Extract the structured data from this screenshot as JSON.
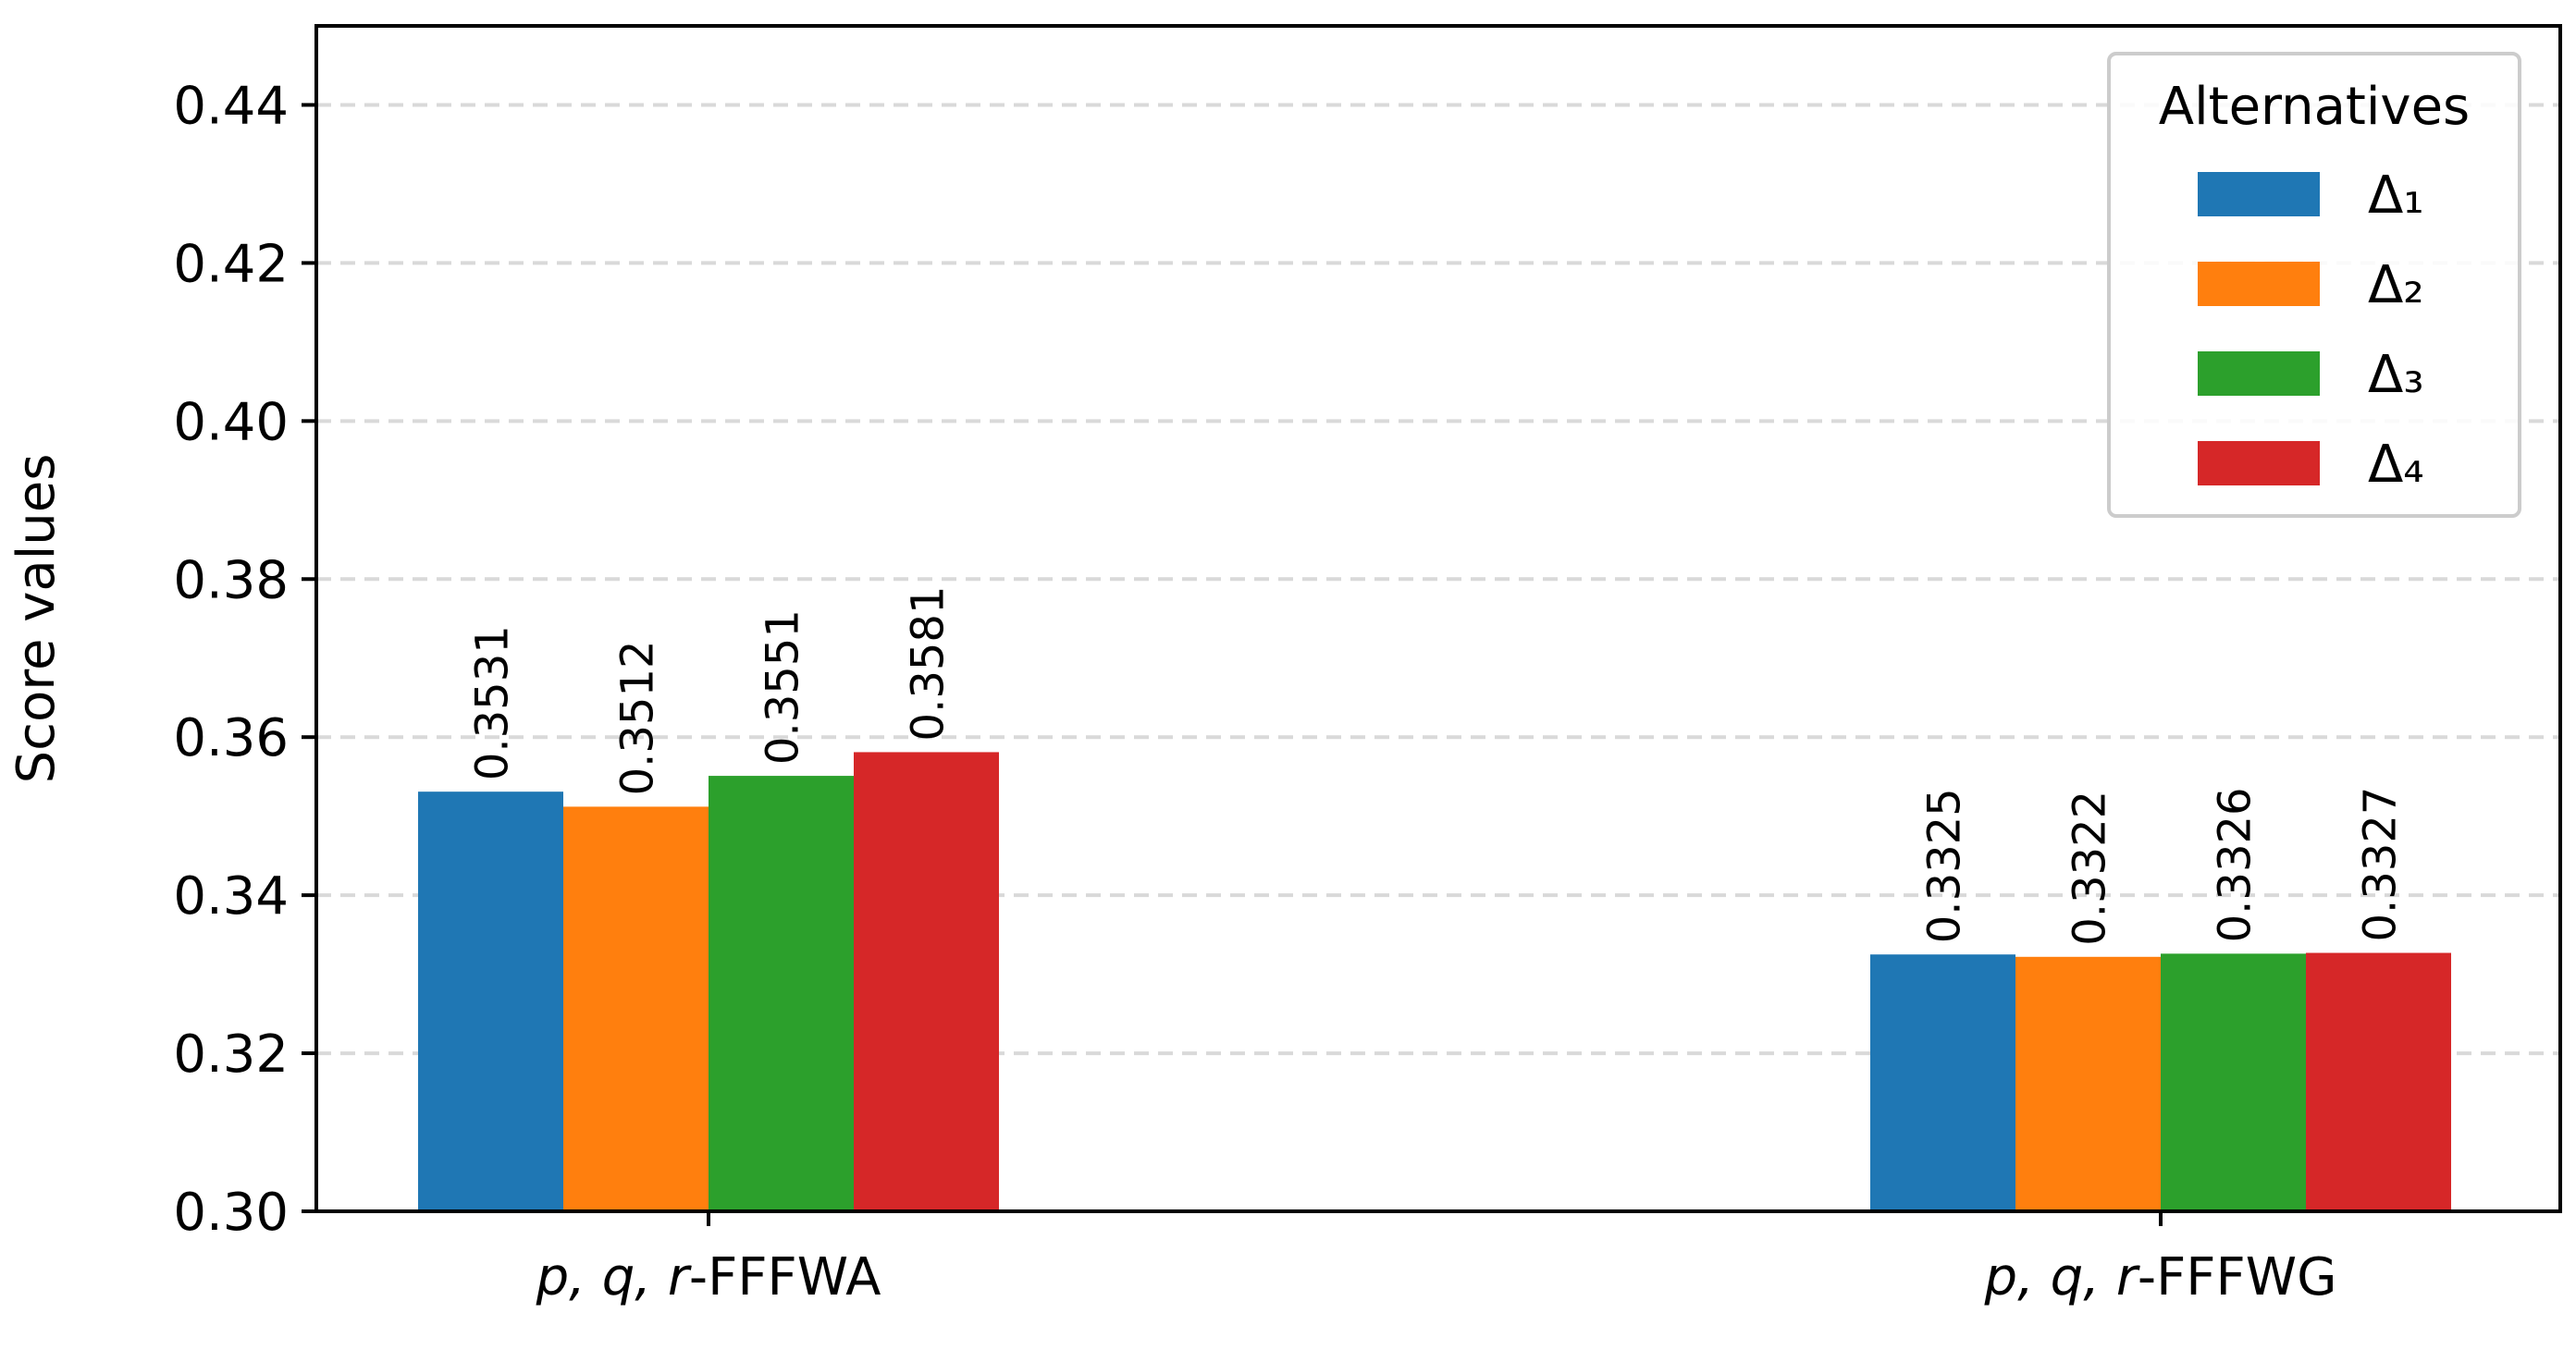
{
  "chart_data": {
    "type": "bar",
    "categories": [
      {
        "italic": "p, q, r",
        "suffix": "-FFFWA"
      },
      {
        "italic": "p, q, r",
        "suffix": "-FFFWG"
      }
    ],
    "series": [
      {
        "name": "Δ₁",
        "color": "#1f77b4",
        "values": [
          0.3531,
          0.3325
        ]
      },
      {
        "name": "Δ₂",
        "color": "#ff7f0e",
        "values": [
          0.3512,
          0.3322
        ]
      },
      {
        "name": "Δ₃",
        "color": "#2ca02c",
        "values": [
          0.3551,
          0.3326
        ]
      },
      {
        "name": "Δ₄",
        "color": "#d62728",
        "values": [
          0.3581,
          0.3327
        ]
      }
    ],
    "data_labels": [
      [
        "0.3531",
        "0.3325"
      ],
      [
        "0.3512",
        "0.3322"
      ],
      [
        "0.3551",
        "0.3326"
      ],
      [
        "0.3581",
        "0.3327"
      ]
    ],
    "ylabel": "Score values",
    "xlabel": "",
    "ylim": [
      0.3,
      0.45
    ],
    "yticks": [
      0.3,
      0.32,
      0.34,
      0.36,
      0.38,
      0.4,
      0.42,
      0.44
    ],
    "ytick_labels": [
      "0.30",
      "0.32",
      "0.34",
      "0.36",
      "0.38",
      "0.40",
      "0.42",
      "0.44"
    ],
    "grid": "horizontal-dashed",
    "legend": {
      "title": "Alternatives",
      "position": "top-right"
    }
  }
}
